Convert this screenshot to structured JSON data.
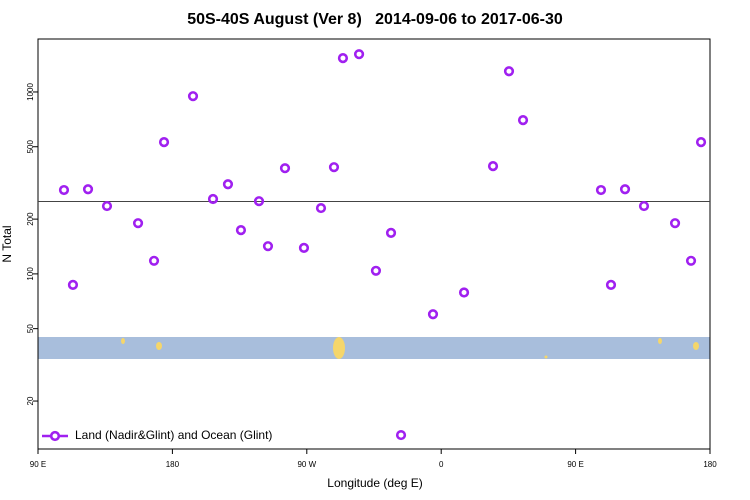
{
  "chart_data": {
    "type": "scatter",
    "title": "50S-40S August (Ver 8)   2014-09-06 to 2017-06-30",
    "x_label": "Longitude (deg E)",
    "y_label": "N Total",
    "xlim": [
      90,
      540
    ],
    "xticks": [
      {
        "value": 90,
        "label": "90 E"
      },
      180,
      {
        "value": 270,
        "label": "90 W"
      },
      {
        "value": 360,
        "label": "0"
      },
      {
        "value": 450,
        "label": "90 E"
      },
      {
        "value": 540,
        "label": "180"
      }
    ],
    "ylim": [
      10.9,
      1955
    ],
    "yticks": [
      20,
      50,
      100,
      200,
      500,
      1000
    ],
    "yscale": "log",
    "reference_line": 250,
    "legend": "lower left",
    "series": [
      {
        "name": "Land (Nadir&Glint) and Ocean (Glint)",
        "color": "#a020f0",
        "x": [
          107.4,
          113.4,
          123.5,
          136.2,
          157,
          167.7,
          174.4,
          193.8,
          207.2,
          217.2,
          225.9,
          238,
          244,
          255.4,
          268.1,
          279.5,
          288.2,
          294.2,
          305,
          316.3,
          326.4,
          333.1,
          354.5,
          375.3,
          394.7,
          405.4,
          414.8,
          467,
          473.7,
          483.1,
          495.8,
          516.6,
          527.3,
          534
        ],
        "values": [
          289,
          87,
          292,
          236,
          190,
          118,
          530,
          948,
          258,
          311,
          174,
          251,
          142,
          381,
          139,
          230,
          386,
          1534,
          1613,
          104,
          168,
          13,
          60,
          79,
          391,
          1300,
          700,
          289,
          87,
          292,
          236,
          190,
          118,
          530
        ]
      }
    ]
  }
}
